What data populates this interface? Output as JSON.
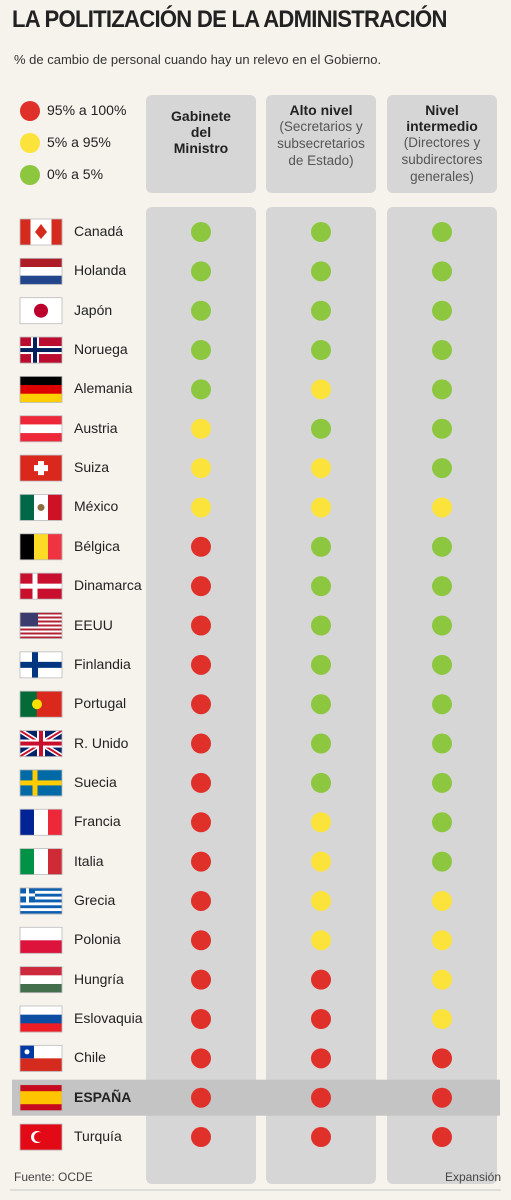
{
  "header": {
    "title": "LA POLITIZACIÓN DE LA ADMINISTRACIÓN",
    "subtitle": "% de cambio de personal cuando hay un relevo en el Gobierno."
  },
  "legend": [
    {
      "label": "95% a 100%",
      "color": "#e0302a"
    },
    {
      "label": "5% a 95%",
      "color": "#fce33b"
    },
    {
      "label": "0% a 5%",
      "color": "#8dc63f"
    }
  ],
  "columns": [
    {
      "title": "Gabinete del Ministro"
    },
    {
      "title": "Alto nivel",
      "note": "(Secretarios y subsecretarios de Estado)"
    },
    {
      "title": "Nivel intermedio",
      "note": "(Directores y subdirectores generales)"
    }
  ],
  "rows": [
    {
      "country": "Canadá",
      "cells": [
        "#8dc63f",
        "#8dc63f",
        "#8dc63f"
      ]
    },
    {
      "country": "Holanda",
      "cells": [
        "#8dc63f",
        "#8dc63f",
        "#8dc63f"
      ]
    },
    {
      "country": "Japón",
      "cells": [
        "#8dc63f",
        "#8dc63f",
        "#8dc63f"
      ]
    },
    {
      "country": "Noruega",
      "cells": [
        "#8dc63f",
        "#8dc63f",
        "#8dc63f"
      ]
    },
    {
      "country": "Alemania",
      "cells": [
        "#8dc63f",
        "#fce33b",
        "#8dc63f"
      ]
    },
    {
      "country": "Austria",
      "cells": [
        "#fce33b",
        "#8dc63f",
        "#8dc63f"
      ]
    },
    {
      "country": "Suiza",
      "cells": [
        "#fce33b",
        "#fce33b",
        "#8dc63f"
      ]
    },
    {
      "country": "México",
      "cells": [
        "#fce33b",
        "#fce33b",
        "#fce33b"
      ]
    },
    {
      "country": "Bélgica",
      "cells": [
        "#e0302a",
        "#8dc63f",
        "#8dc63f"
      ]
    },
    {
      "country": "Dinamarca",
      "cells": [
        "#e0302a",
        "#8dc63f",
        "#8dc63f"
      ]
    },
    {
      "country": "EEUU",
      "cells": [
        "#e0302a",
        "#8dc63f",
        "#8dc63f"
      ]
    },
    {
      "country": "Finlandia",
      "cells": [
        "#e0302a",
        "#8dc63f",
        "#8dc63f"
      ]
    },
    {
      "country": "Portugal",
      "cells": [
        "#e0302a",
        "#8dc63f",
        "#8dc63f"
      ]
    },
    {
      "country": "R. Unido",
      "cells": [
        "#e0302a",
        "#8dc63f",
        "#8dc63f"
      ]
    },
    {
      "country": "Suecia",
      "cells": [
        "#e0302a",
        "#8dc63f",
        "#8dc63f"
      ]
    },
    {
      "country": "Francia",
      "cells": [
        "#e0302a",
        "#fce33b",
        "#8dc63f"
      ]
    },
    {
      "country": "Italia",
      "cells": [
        "#e0302a",
        "#fce33b",
        "#8dc63f"
      ]
    },
    {
      "country": "Grecia",
      "cells": [
        "#e0302a",
        "#fce33b",
        "#fce33b"
      ]
    },
    {
      "country": "Polonia",
      "cells": [
        "#e0302a",
        "#fce33b",
        "#fce33b"
      ]
    },
    {
      "country": "Hungría",
      "cells": [
        "#e0302a",
        "#e0302a",
        "#fce33b"
      ]
    },
    {
      "country": "Eslovaquia",
      "cells": [
        "#e0302a",
        "#e0302a",
        "#fce33b"
      ]
    },
    {
      "country": "Chile",
      "cells": [
        "#e0302a",
        "#e0302a",
        "#e0302a"
      ]
    },
    {
      "country": "ESPAÑA",
      "cells": [
        "#e0302a",
        "#e0302a",
        "#e0302a"
      ],
      "highlight": true
    },
    {
      "country": "Turquía",
      "cells": [
        "#e0302a",
        "#e0302a",
        "#e0302a"
      ]
    }
  ],
  "footer": {
    "source": "Fuente: OCDE",
    "credit": "Expansión"
  }
}
